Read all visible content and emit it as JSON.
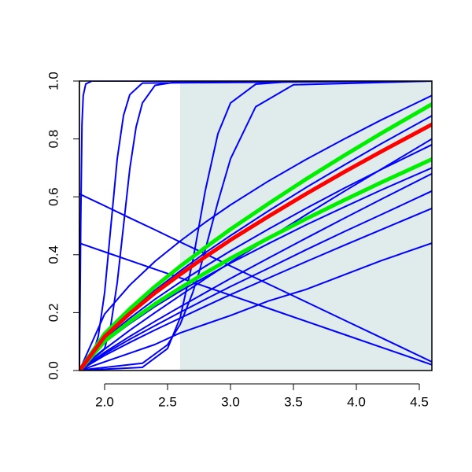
{
  "chart_data": {
    "type": "line",
    "xlim": [
      1.8,
      4.6
    ],
    "ylim": [
      0,
      1
    ],
    "xticks": [
      {
        "value": 2,
        "label": "2.0"
      },
      {
        "value": 2.5,
        "label": "2.5"
      },
      {
        "value": 3,
        "label": "3.0"
      },
      {
        "value": 3.5,
        "label": "3.5"
      },
      {
        "value": 4,
        "label": "4.0"
      },
      {
        "value": 4.5,
        "label": "4.5"
      }
    ],
    "yticks": [
      {
        "value": 0,
        "label": "0.0"
      },
      {
        "value": 0.2,
        "label": "0.2"
      },
      {
        "value": 0.4,
        "label": "0.4"
      },
      {
        "value": 0.6,
        "label": "0.6"
      },
      {
        "value": 0.8,
        "label": "0.8"
      },
      {
        "value": 1,
        "label": "1.0"
      }
    ],
    "shaded_region": {
      "xmin": 2.6,
      "xmax": 4.6,
      "color": "#e0ecec"
    },
    "x": [
      1.8,
      2.0,
      2.2,
      2.4,
      2.6,
      2.8,
      3.0,
      3.3,
      3.6,
      3.9,
      4.2,
      4.6
    ],
    "series": [
      {
        "color": "#0000ff",
        "linewidth": 2,
        "values": [
          0,
          0.195,
          0.295,
          0.377,
          0.447,
          0.512,
          0.572,
          0.654,
          0.729,
          0.799,
          0.866,
          0.95
        ]
      },
      {
        "color": "#0000ff",
        "linewidth": 2,
        "values": [
          0,
          0.121,
          0.204,
          0.277,
          0.344,
          0.407,
          0.466,
          0.551,
          0.632,
          0.709,
          0.784,
          0.88
        ]
      },
      {
        "color": "#0000ff",
        "linewidth": 2,
        "values": [
          0,
          0.074,
          0.139,
          0.2,
          0.259,
          0.317,
          0.374,
          0.456,
          0.538,
          0.618,
          0.696,
          0.8
        ]
      },
      {
        "color": "#0000ff",
        "linewidth": 2,
        "values": [
          0,
          0.108,
          0.181,
          0.246,
          0.305,
          0.36,
          0.413,
          0.488,
          0.56,
          0.629,
          0.695,
          0.78
        ]
      },
      {
        "color": "#0000ff",
        "linewidth": 2,
        "values": [
          0,
          0.097,
          0.162,
          0.221,
          0.274,
          0.323,
          0.371,
          0.438,
          0.503,
          0.564,
          0.624,
          0.7
        ]
      },
      {
        "color": "#0000ff",
        "linewidth": 2,
        "values": [
          0,
          0.063,
          0.118,
          0.17,
          0.22,
          0.269,
          0.318,
          0.388,
          0.457,
          0.525,
          0.592,
          0.68
        ]
      },
      {
        "color": "#0000ff",
        "linewidth": 2,
        "values": [
          0,
          0.058,
          0.108,
          0.155,
          0.201,
          0.246,
          0.29,
          0.353,
          0.417,
          0.479,
          0.539,
          0.62
        ]
      },
      {
        "color": "#0000ff",
        "linewidth": 2,
        "values": [
          0,
          0.052,
          0.097,
          0.14,
          0.181,
          0.222,
          0.262,
          0.319,
          0.376,
          0.432,
          0.487,
          0.56
        ]
      },
      {
        "color": "#0000ff",
        "linewidth": 2,
        "values": [
          0,
          0.03,
          0.06,
          0.09,
          0.13,
          0.16,
          0.19,
          0.24,
          0.28,
          0.33,
          0.38,
          0.44
        ]
      },
      {
        "color": "#0000ff",
        "linewidth": 2,
        "values": [
          0.61,
          0.569,
          0.527,
          0.486,
          0.444,
          0.403,
          0.361,
          0.299,
          0.237,
          0.175,
          0.113,
          0.03
        ]
      },
      {
        "color": "#0000ff",
        "linewidth": 2,
        "values": [
          0.44,
          0.41,
          0.38,
          0.35,
          0.32,
          0.29,
          0.26,
          0.215,
          0.17,
          0.125,
          0.08,
          0.02
        ]
      },
      {
        "color": "#0000ff",
        "linewidth": 2,
        "x": [
          1.8,
          1.81,
          1.82,
          1.83,
          1.85,
          1.9,
          4.6
        ],
        "values": [
          0,
          0.5,
          0.85,
          0.95,
          0.99,
          1,
          1
        ]
      },
      {
        "color": "#0000ff",
        "linewidth": 2,
        "x": [
          1.8,
          1.9,
          1.95,
          2.0,
          2.05,
          2.1,
          2.15,
          2.2,
          2.3,
          4.6
        ],
        "values": [
          0.007,
          0.047,
          0.119,
          0.269,
          0.5,
          0.731,
          0.881,
          0.953,
          0.993,
          1
        ]
      },
      {
        "color": "#0000ff",
        "linewidth": 2,
        "x": [
          1.8,
          2.0,
          2.05,
          2.1,
          2.15,
          2.2,
          2.25,
          2.3,
          2.4,
          2.6,
          4.6
        ],
        "values": [
          0.003,
          0.076,
          0.159,
          0.303,
          0.5,
          0.697,
          0.841,
          0.924,
          0.985,
          0.999,
          1
        ]
      },
      {
        "color": "#0000ff",
        "linewidth": 2,
        "x": [
          1.8,
          2.3,
          2.5,
          2.6,
          2.7,
          2.75,
          2.8,
          2.9,
          3.0,
          3.2,
          3.5,
          4.6
        ],
        "values": [
          0,
          0.011,
          0.076,
          0.182,
          0.378,
          0.5,
          0.622,
          0.818,
          0.924,
          0.989,
          0.999,
          1
        ]
      },
      {
        "color": "#0000ff",
        "linewidth": 2,
        "x": [
          1.8,
          2.3,
          2.5,
          2.6,
          2.7,
          2.75,
          2.8,
          2.9,
          3.0,
          3.2,
          3.5,
          4.6
        ],
        "values": [
          0.001,
          0.025,
          0.089,
          0.159,
          0.269,
          0.339,
          0.418,
          0.582,
          0.731,
          0.911,
          0.987,
          1
        ]
      },
      {
        "color": "#00ee00",
        "linewidth": 5,
        "values": [
          0,
          0.127,
          0.213,
          0.29,
          0.36,
          0.425,
          0.488,
          0.576,
          0.661,
          0.742,
          0.82,
          0.92
        ]
      },
      {
        "color": "#00ee00",
        "linewidth": 5,
        "values": [
          0,
          0.101,
          0.169,
          0.23,
          0.285,
          0.337,
          0.387,
          0.457,
          0.524,
          0.588,
          0.65,
          0.73
        ]
      },
      {
        "color": "#ff0000",
        "linewidth": 5,
        "values": [
          0,
          0.117,
          0.197,
          0.268,
          0.332,
          0.393,
          0.451,
          0.532,
          0.61,
          0.685,
          0.757,
          0.85
        ]
      }
    ]
  }
}
